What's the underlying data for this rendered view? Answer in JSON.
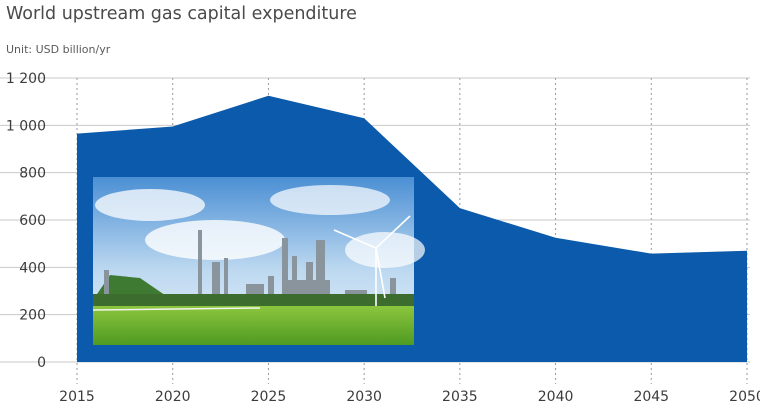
{
  "chart_data": {
    "type": "area",
    "title": "World upstream gas capital expenditure",
    "subtitle": "Unit: USD billion/yr",
    "xlabel": "",
    "ylabel": "",
    "x": [
      2015,
      2020,
      2025,
      2030,
      2035,
      2040,
      2045,
      2050
    ],
    "x_tick_labels": [
      "2015",
      "2020",
      "2025",
      "2030",
      "2035",
      "2040",
      "2045",
      "2050"
    ],
    "y_ticks": [
      0,
      200,
      400,
      600,
      800,
      1000,
      1200
    ],
    "y_tick_labels": [
      "0",
      "200",
      "400",
      "600",
      "800",
      "1 000",
      "1 200"
    ],
    "ylim": [
      0,
      1200
    ],
    "grid": true,
    "series": [
      {
        "values": [
          965,
          995,
          1125,
          1030,
          650,
          525,
          458,
          470
        ]
      }
    ],
    "colors": {
      "area": "#0b5aab",
      "grid": "#c9c9c9"
    },
    "inset_image": "refinery-and-wind-turbine-photo"
  }
}
